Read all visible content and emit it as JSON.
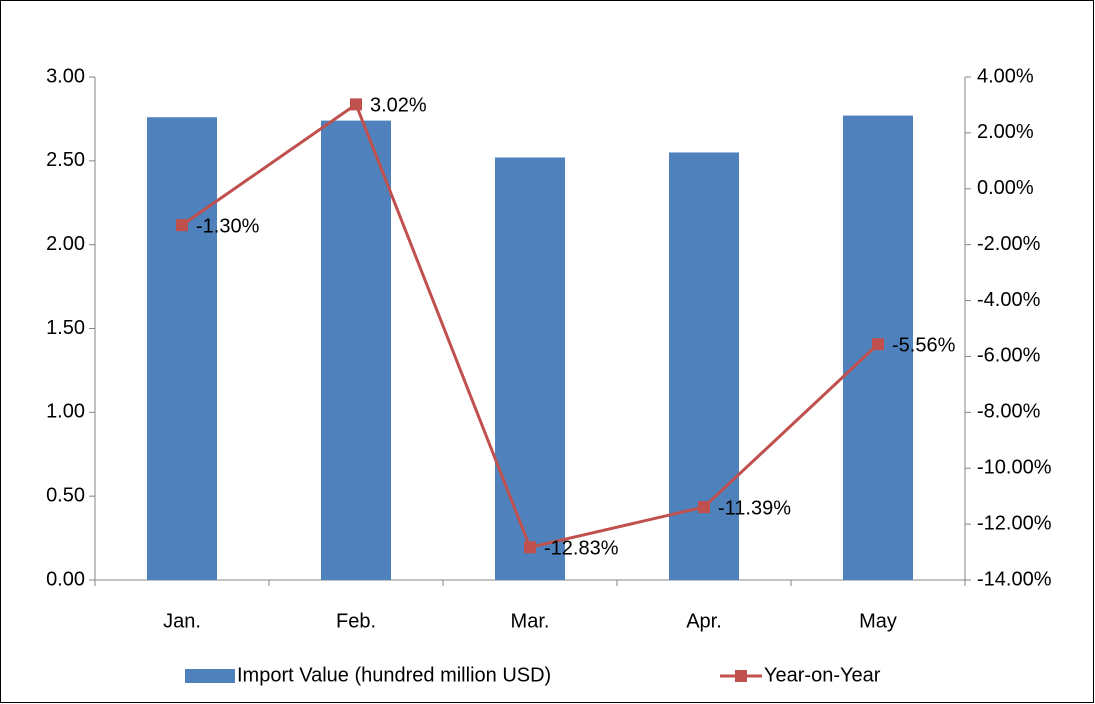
{
  "chart_data": {
    "type": "bar",
    "categories": [
      "Jan.",
      "Feb.",
      "Mar.",
      "Apr.",
      "May"
    ],
    "series": [
      {
        "name": "Import Value (hundred million USD)",
        "type": "bar",
        "color": "#4f81bd",
        "values": [
          2.76,
          2.74,
          2.52,
          2.55,
          2.77
        ]
      },
      {
        "name": "Year-on-Year",
        "type": "line",
        "axis": "y2",
        "color": "#c0504d",
        "values": [
          -1.3,
          3.02,
          -12.83,
          -11.39,
          -5.56
        ],
        "value_labels": [
          "-1.30%",
          "3.02%",
          "-12.83%",
          "-11.39%",
          "-5.56%"
        ]
      }
    ],
    "ylim": [
      0,
      3
    ],
    "yticks": [
      {
        "value": 0,
        "label": "0.00"
      },
      {
        "value": 0.5,
        "label": "0.50"
      },
      {
        "value": 1,
        "label": "1.00"
      },
      {
        "value": 1.5,
        "label": "1.50"
      },
      {
        "value": 2,
        "label": "2.00"
      },
      {
        "value": 2.5,
        "label": "2.50"
      },
      {
        "value": 3,
        "label": "3.00"
      }
    ],
    "y2lim": [
      -14,
      4
    ],
    "y2ticks": [
      {
        "value": -14,
        "label": "-14.00%"
      },
      {
        "value": -12,
        "label": "-12.00%"
      },
      {
        "value": -10,
        "label": "-10.00%"
      },
      {
        "value": -8,
        "label": "-8.00%"
      },
      {
        "value": -6,
        "label": "-6.00%"
      },
      {
        "value": -4,
        "label": "-4.00%"
      },
      {
        "value": -2,
        "label": "-2.00%"
      },
      {
        "value": 0,
        "label": "0.00%"
      },
      {
        "value": 2,
        "label": "2.00%"
      },
      {
        "value": 4,
        "label": "4.00%"
      }
    ],
    "legend": "bottom"
  }
}
